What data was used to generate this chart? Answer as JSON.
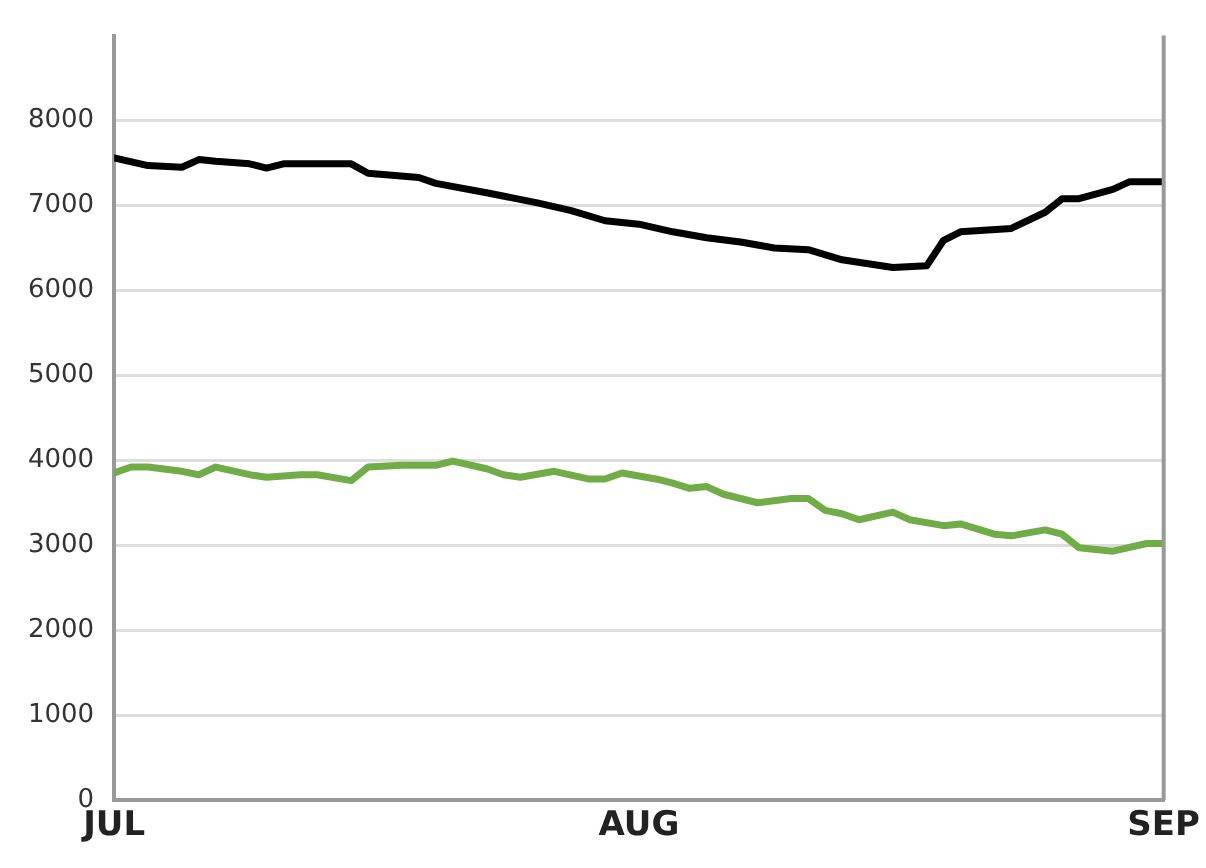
{
  "chart_data": {
    "type": "line",
    "series": [
      {
        "color": "#000000",
        "x": [
          "--07-01",
          "--07-03",
          "--07-05",
          "--07-06",
          "--07-07",
          "--07-09",
          "--07-10",
          "--07-11",
          "--07-15",
          "--07-16",
          "--07-19",
          "--07-20",
          "--07-23",
          "--07-26",
          "--07-28",
          "--07-30",
          "--08-01",
          "--08-03",
          "--08-05",
          "--08-07",
          "--08-09",
          "--08-11",
          "--08-13",
          "--08-16",
          "--08-18",
          "--08-19",
          "--08-20",
          "--08-23",
          "--08-25",
          "--08-26",
          "--08-27",
          "--08-29",
          "--08-30",
          "--09-01"
        ],
        "values": [
          7560,
          7470,
          7450,
          7540,
          7520,
          7490,
          7440,
          7490,
          7490,
          7380,
          7330,
          7260,
          7150,
          7030,
          6940,
          6820,
          6780,
          6690,
          6620,
          6570,
          6500,
          6480,
          6360,
          6270,
          6290,
          6590,
          6690,
          6730,
          6920,
          7080,
          7080,
          7190,
          7280,
          7280
        ]
      },
      {
        "color": "#70ad47",
        "x": [
          "--07-01",
          "--07-02",
          "--07-03",
          "--07-05",
          "--07-06",
          "--07-07",
          "--07-09",
          "--07-10",
          "--07-12",
          "--07-13",
          "--07-15",
          "--07-16",
          "--07-18",
          "--07-20",
          "--07-21",
          "--07-23",
          "--07-24",
          "--07-25",
          "--07-27",
          "--07-29",
          "--07-30",
          "--07-31",
          "--08-02",
          "--08-03",
          "--08-04",
          "--08-05",
          "--08-06",
          "--08-08",
          "--08-10",
          "--08-11",
          "--08-12",
          "--08-13",
          "--08-14",
          "--08-16",
          "--08-17",
          "--08-19",
          "--08-20",
          "--08-22",
          "--08-23",
          "--08-25",
          "--08-26",
          "--08-27",
          "--08-29",
          "--08-31",
          "--09-01"
        ],
        "values": [
          3850,
          3920,
          3920,
          3870,
          3830,
          3920,
          3830,
          3800,
          3830,
          3830,
          3760,
          3920,
          3940,
          3940,
          3990,
          3900,
          3830,
          3800,
          3870,
          3780,
          3780,
          3850,
          3780,
          3730,
          3670,
          3690,
          3600,
          3500,
          3550,
          3550,
          3410,
          3370,
          3300,
          3390,
          3300,
          3230,
          3250,
          3130,
          3110,
          3180,
          3130,
          2970,
          2930,
          3020,
          3020
        ]
      }
    ],
    "xlim": [
      "--07-01",
      "--09-01"
    ],
    "xticks": [
      {
        "value": "--07-01",
        "label": "JUL"
      },
      {
        "value": "--08-01",
        "label": "AUG"
      },
      {
        "value": "--09-01",
        "label": "SEP"
      }
    ],
    "ylim": [
      0,
      9000
    ],
    "yticks": [
      0,
      1000,
      2000,
      3000,
      4000,
      5000,
      6000,
      7000,
      8000
    ],
    "grid": "y",
    "legend": false,
    "marker": "none",
    "line_style": "solid"
  }
}
